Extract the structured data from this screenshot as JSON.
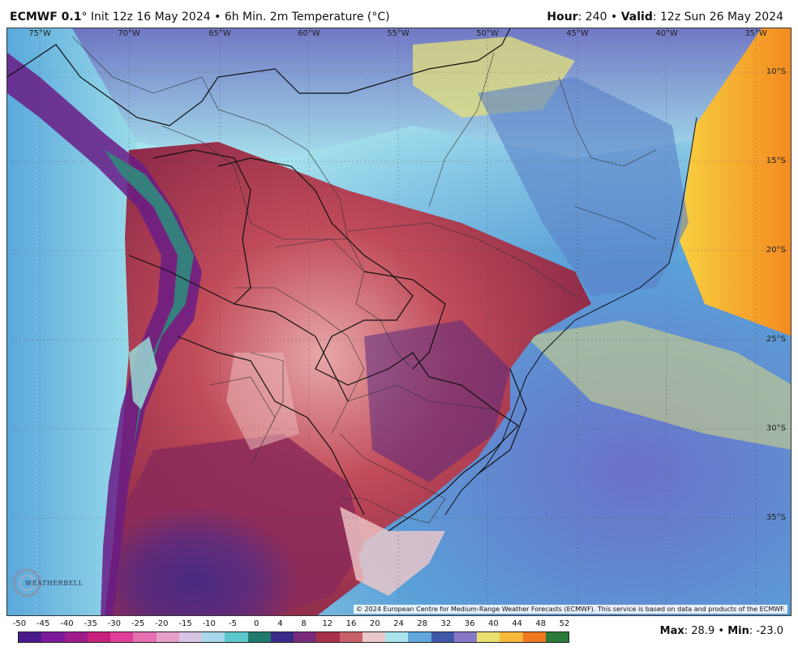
{
  "header": {
    "model": "ECMWF 0.1",
    "degree_mark": "°",
    "init_text": "Init 12z 16 May 2024",
    "sep": "•",
    "product": "6h Min. 2m Temperature (°C)",
    "hour_label": "Hour",
    "hour_value": ": 240",
    "valid_label": "Valid",
    "valid_value": ": 12z Sun 26 May 2024"
  },
  "map": {
    "lon_labels": [
      "75°W",
      "70°W",
      "65°W",
      "60°W",
      "55°W",
      "50°W",
      "45°W",
      "40°W",
      "35°W"
    ],
    "lat_labels": [
      "10°S",
      "15°S",
      "20°S",
      "25°S",
      "30°S",
      "35°S"
    ],
    "credit": "© 2024 European Centre for Medium-Range Weather Forecasts (ECMWF). This service is based on data and products of the ECMWF.",
    "logo_text": "WEATHERBELL",
    "colors": {
      "ocean_cool": "#5aa8dc",
      "ocean_light": "#a8e4ee",
      "warm_sea": "#f6b43a",
      "land_warm": "#b03848",
      "land_cold": "#4c2a8a",
      "andes": "#2f8a7c",
      "yellow": "#e6e07a"
    }
  },
  "legend": {
    "ticks": [
      "-50",
      "-45",
      "-40",
      "-35",
      "-30",
      "-25",
      "-20",
      "-15",
      "-10",
      "-5",
      "0",
      "4",
      "8",
      "12",
      "16",
      "20",
      "24",
      "28",
      "32",
      "36",
      "40",
      "44",
      "48",
      "52"
    ],
    "colors": [
      "#4a1a8c",
      "#7a1a9a",
      "#a01c8c",
      "#c8207c",
      "#e0409a",
      "#e470b0",
      "#e6a0c8",
      "#d8c4e4",
      "#a8d8ec",
      "#5ac8cc",
      "#1e7a6c",
      "#3a2a8a",
      "#7a2a7a",
      "#a8304a",
      "#c8606a",
      "#e8c8c8",
      "#a8e4ee",
      "#60a8dc",
      "#4058a8",
      "#8878c8",
      "#e8e070",
      "#f8b838",
      "#f07820",
      "#2a7a3a"
    ]
  },
  "footer": {
    "max_label": "Max",
    "max_value": ": 28.9",
    "sep": "•",
    "min_label": "Min",
    "min_value": ": -23.0"
  }
}
